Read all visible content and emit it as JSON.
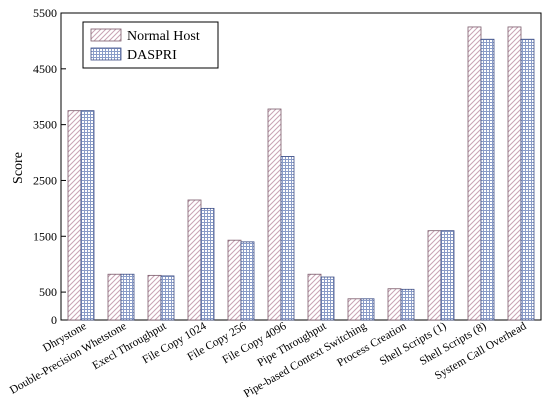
{
  "chart_data": {
    "type": "bar",
    "title": "",
    "xlabel": "",
    "ylabel": "Score",
    "ylim": [
      0,
      5500
    ],
    "yticks": [
      0,
      500,
      1500,
      2500,
      3500,
      4500,
      5500
    ],
    "legend_position": "top-left",
    "grid": false,
    "categories": [
      "Dhrystone",
      "Double-Precision Whetstone",
      "Execl Throughput",
      "File Copy 1024",
      "File Copy 256",
      "File Copy 4096",
      "Pipe Throughput",
      "Pipe-based Context Switching",
      "Process Creation",
      "Shell Scripts (1)",
      "Shell Scripts (8)",
      "System Call Overhead"
    ],
    "series": [
      {
        "name": "Normal Host",
        "color": "#c9a3b4",
        "pattern": "diagonal",
        "values": [
          3750,
          820,
          800,
          2150,
          1430,
          3780,
          820,
          380,
          560,
          1600,
          5250,
          5250
        ]
      },
      {
        "name": "DASPRI",
        "color": "#8a9cc8",
        "pattern": "grid",
        "values": [
          3750,
          820,
          790,
          2000,
          1400,
          2930,
          770,
          380,
          550,
          1600,
          5030,
          5030
        ]
      }
    ]
  }
}
